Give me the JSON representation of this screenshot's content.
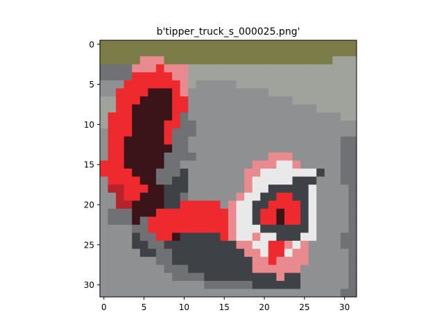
{
  "chart_data": {
    "type": "image",
    "title": "b'tipper_truck_s_000025.png'",
    "xlabel": "",
    "ylabel": "",
    "grid": false,
    "image_size": [
      32,
      32
    ],
    "xlim": [
      -0.5,
      31.5
    ],
    "ylim": [
      31.5,
      -0.5
    ],
    "x_ticks": [
      0,
      5,
      10,
      15,
      20,
      25,
      30
    ],
    "y_ticks": [
      0,
      5,
      10,
      15,
      20,
      25,
      30
    ],
    "palette": {
      "r": "#ee2a2e",
      "d": "#b8222a",
      "p": "#e98a8e",
      "k": "#3a1418",
      "w": "#e9e9ea",
      "g": "#8e9092",
      "m": "#6f7174",
      "b": "#3e4246",
      "o": "#7b7c48",
      "v": "#a0a39c"
    },
    "pixel_rows": [
      "oooooooooooooooooooooooooooooooo",
      "oooooooooooooooooooooooooooooooo",
      "ooooopppooooooooooooooooooooovvv",
      "mmmmppprpppvvvvvvvvvvvvvvvvvvvvv",
      "mmmmrrrrrppvvvvvvvvvvvvvvvvvvvvv",
      "gggrrrrrrrpvgggggvvvvvvvvvvvvvvv",
      "ggrrrrkkkrpggggggggggvvvvvvvvvvv",
      "vvrrrkkkkrrgggggggggggggvvvvvvvv",
      "vvrrkkkkkrrggggggggggggggggvvvvv",
      "vrrrkkkkkrmgggggggggggggggggggvv",
      "vrrrkkkkrrmmgggggggggggggggggggg",
      "grrrkkkkrmmmgggggggggggggggggggg",
      "grrkkkkkrmmgggggggggggggggggggmm",
      "grrkkkkkkmmgggggggggggggggggggmm",
      "grrkkkkkmmmmgggggggggpppggggggmm",
      "rrrkkkkkmmgggggggggpppwwpgggggmm",
      "rrrrkkkmmmbgggggggppwwwwwwwbggmm",
      "grrrrkkmmbbgggggggpwwwwwbbbgggmm",
      "gddrrrkkbbbgggggggpwwbbbbbwggggm",
      "ggdrrkkkbbmggggggpwwbbrrbbwggggm",
      "ggddkkkkbbrrrrrgpwwbbrrrrbwggggm",
      "gmmmkkkrrrrrrrrrpwwbrrkrrbwggggm",
      "gmmmkmrrrrrrrrrrpwwbrrkrrbwggggm",
      "ggggmmrrrrrrrrrrpwwwbbbbbbwggggm",
      "ggggbmmrrkbbbbbrpwwpwwbbbwwgggmm",
      "ggggbbmmbbbbbbbbbppwwrrpwpggggmm",
      "gggggbbmmbbbbbbbbbppwrrwppgggggm",
      "gggggggmmbbbbbbbbbbpprppppgggggm",
      "ggggggggmmmbbbbbbbbppppppggggggm",
      "gggggggggmmmmbbbbbbbbbpbbggggggm",
      "gggggggggggggmmmmmmbbbbbbggggggm",
      "ggggggggggggggggggggggggggggggmm"
    ]
  }
}
